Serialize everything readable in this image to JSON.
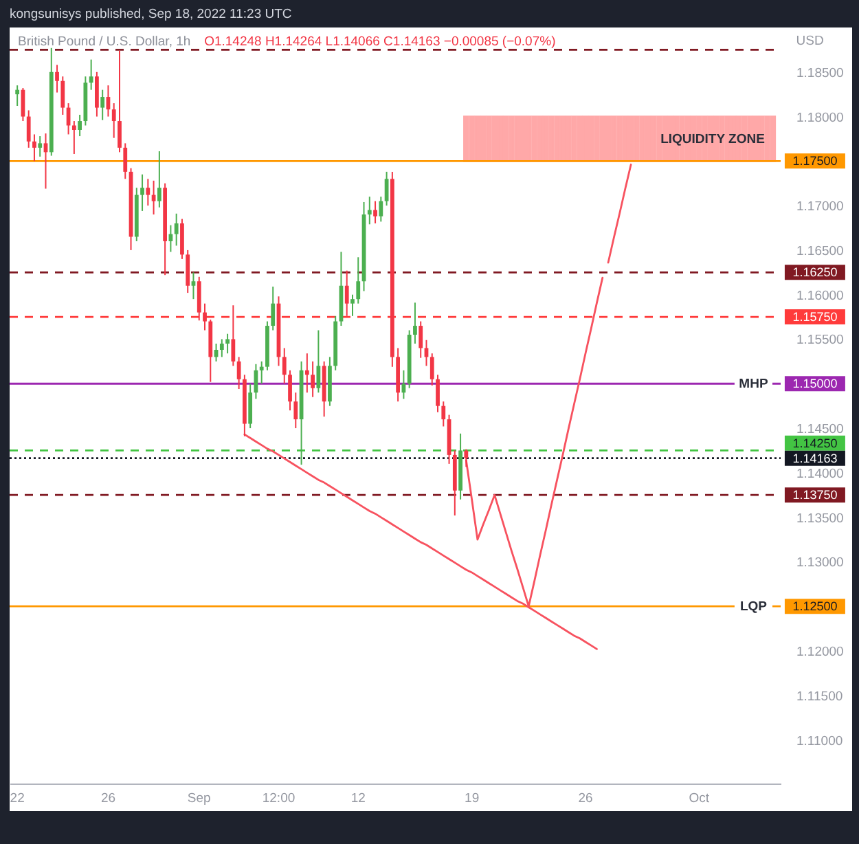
{
  "chart_data": {
    "type": "candlestick",
    "title": "British Pound / U.S. Dollar, 1h",
    "ylabel": "USD",
    "annotations": [
      "kongsunisys published, Sep 18, 2022 11:23 UTC",
      "O1.14248 H1.14264 L1.14066 C1.14163 −0.00085 (−0.07%)",
      "LIQUIDITY ZONE",
      {
        "text": "MHP",
        "y": 1.15
      },
      {
        "text": "LQP",
        "y": 1.125
      }
    ],
    "categories": [
      "22",
      null,
      null,
      null,
      null,
      null,
      null,
      null,
      null,
      null,
      null,
      null,
      null,
      null,
      null,
      null,
      "26",
      null,
      null,
      null,
      null,
      null,
      null,
      null,
      null,
      null,
      null,
      null,
      null,
      null,
      null,
      null,
      "Sep",
      null,
      null,
      null,
      null,
      null,
      null,
      null,
      null,
      null,
      null,
      null,
      null,
      null,
      "12:00",
      null,
      null,
      null,
      null,
      null,
      null,
      null,
      null,
      null,
      null,
      null,
      null,
      null,
      "12",
      null,
      null,
      null,
      null,
      null,
      null,
      null,
      null,
      null,
      null,
      null,
      null,
      null,
      null,
      null,
      null,
      null,
      null,
      null,
      "19",
      null,
      null,
      null,
      null,
      null,
      null,
      null,
      null,
      null,
      null,
      null,
      null,
      null,
      null,
      null,
      null,
      null,
      null,
      null,
      "26",
      null,
      null,
      null,
      null,
      null,
      null,
      null,
      null,
      null,
      null,
      null,
      null,
      null,
      null,
      null,
      null,
      null,
      null,
      null,
      "Oct",
      null,
      null,
      null,
      null,
      null,
      null,
      null,
      null,
      null,
      null,
      null,
      null,
      null
    ],
    "ylim": [
      1.1051,
      1.19
    ],
    "yticks": [
      {
        "value": 1.11,
        "label": "1.11000"
      },
      {
        "value": 1.115,
        "label": "1.11500"
      },
      {
        "value": 1.12,
        "label": "1.12000"
      },
      {
        "value": 1.13,
        "label": "1.13000"
      },
      {
        "value": 1.135,
        "label": "1.13500"
      },
      {
        "value": 1.14,
        "label": "1.14000"
      },
      {
        "value": 1.145,
        "label": "1.14500"
      },
      {
        "value": 1.155,
        "label": "1.15500"
      },
      {
        "value": 1.16,
        "label": "1.16000"
      },
      {
        "value": 1.165,
        "label": "1.16500"
      },
      {
        "value": 1.17,
        "label": "1.17000"
      },
      {
        "value": 1.18,
        "label": "1.18000"
      },
      {
        "value": 1.185,
        "label": "1.18500"
      }
    ],
    "ohlc": [
      [
        1.1825,
        1.1835,
        1.1812,
        1.183
      ],
      [
        1.183,
        1.1832,
        1.1795,
        1.18
      ],
      [
        1.18,
        1.1807,
        1.1765,
        1.1772
      ],
      [
        1.1772,
        1.178,
        1.175,
        1.1765
      ],
      [
        1.1765,
        1.1778,
        1.1755,
        1.177
      ],
      [
        1.177,
        1.1781,
        1.1719,
        1.176
      ],
      [
        1.176,
        1.1877,
        1.1756,
        1.185
      ],
      [
        1.185,
        1.1858,
        1.1827,
        1.184
      ],
      [
        1.184,
        1.1845,
        1.1802,
        1.181
      ],
      [
        1.181,
        1.1815,
        1.178,
        1.179
      ],
      [
        1.179,
        1.1795,
        1.1758,
        1.1785
      ],
      [
        1.1785,
        1.1802,
        1.1778,
        1.1795
      ],
      [
        1.1795,
        1.1845,
        1.179,
        1.1838
      ],
      [
        1.1838,
        1.1864,
        1.183,
        1.1845
      ],
      [
        1.1845,
        1.185,
        1.18,
        1.181
      ],
      [
        1.181,
        1.183,
        1.1796,
        1.1822
      ],
      [
        1.1822,
        1.1835,
        1.18,
        1.1808
      ],
      [
        1.1808,
        1.1815,
        1.1776,
        1.1795
      ],
      [
        1.1795,
        1.1874,
        1.176,
        1.1765
      ],
      [
        1.1765,
        1.177,
        1.173,
        1.1738
      ],
      [
        1.1738,
        1.1742,
        1.165,
        1.1665
      ],
      [
        1.1665,
        1.172,
        1.166,
        1.1712
      ],
      [
        1.1712,
        1.1735,
        1.1694,
        1.172
      ],
      [
        1.172,
        1.173,
        1.17,
        1.1712
      ],
      [
        1.1712,
        1.1728,
        1.169,
        1.1705
      ],
      [
        1.1705,
        1.1761,
        1.1698,
        1.172
      ],
      [
        1.172,
        1.1725,
        1.1622,
        1.166
      ],
      [
        1.166,
        1.1678,
        1.1648,
        1.1668
      ],
      [
        1.1668,
        1.1691,
        1.1655,
        1.168
      ],
      [
        1.168,
        1.1685,
        1.164,
        1.1645
      ],
      [
        1.1645,
        1.165,
        1.1602,
        1.161
      ],
      [
        1.161,
        1.1625,
        1.1595,
        1.1615
      ],
      [
        1.1615,
        1.162,
        1.1571,
        1.158
      ],
      [
        1.158,
        1.159,
        1.156,
        1.157
      ],
      [
        1.157,
        1.1572,
        1.1502,
        1.153
      ],
      [
        1.153,
        1.1545,
        1.1525,
        1.1538
      ],
      [
        1.1538,
        1.155,
        1.153,
        1.1545
      ],
      [
        1.1545,
        1.1556,
        1.1534,
        1.155
      ],
      [
        1.155,
        1.1588,
        1.152,
        1.1525
      ],
      [
        1.1525,
        1.153,
        1.1494,
        1.1505
      ],
      [
        1.1505,
        1.151,
        1.1441,
        1.1455
      ],
      [
        1.1455,
        1.15,
        1.145,
        1.149
      ],
      [
        1.149,
        1.1522,
        1.1483,
        1.1515
      ],
      [
        1.1515,
        1.1525,
        1.15,
        1.1519
      ],
      [
        1.1519,
        1.157,
        1.1515,
        1.1565
      ],
      [
        1.1565,
        1.1609,
        1.156,
        1.159
      ],
      [
        1.159,
        1.1598,
        1.152,
        1.153
      ],
      [
        1.153,
        1.154,
        1.15,
        1.151
      ],
      [
        1.151,
        1.1515,
        1.147,
        1.148
      ],
      [
        1.148,
        1.149,
        1.145,
        1.146
      ],
      [
        1.146,
        1.1525,
        1.1409,
        1.1515
      ],
      [
        1.1515,
        1.1534,
        1.149,
        1.151
      ],
      [
        1.151,
        1.1525,
        1.1485,
        1.1495
      ],
      [
        1.1495,
        1.156,
        1.149,
        1.152
      ],
      [
        1.152,
        1.1525,
        1.1463,
        1.148
      ],
      [
        1.148,
        1.153,
        1.1475,
        1.152
      ],
      [
        1.152,
        1.1576,
        1.1515,
        1.157
      ],
      [
        1.157,
        1.1648,
        1.1565,
        1.161
      ],
      [
        1.161,
        1.1627,
        1.1576,
        1.159
      ],
      [
        1.159,
        1.16,
        1.1576,
        1.1595
      ],
      [
        1.1595,
        1.1642,
        1.159,
        1.1615
      ],
      [
        1.1615,
        1.1704,
        1.1604,
        1.169
      ],
      [
        1.169,
        1.171,
        1.1679,
        1.1695
      ],
      [
        1.1695,
        1.1705,
        1.168,
        1.1688
      ],
      [
        1.1688,
        1.171,
        1.1682,
        1.1705
      ],
      [
        1.1705,
        1.1738,
        1.17,
        1.173
      ],
      [
        1.173,
        1.1738,
        1.1519,
        1.153
      ],
      [
        1.153,
        1.154,
        1.148,
        1.149
      ],
      [
        1.149,
        1.1515,
        1.1483,
        1.15
      ],
      [
        1.15,
        1.156,
        1.1495,
        1.1555
      ],
      [
        1.1555,
        1.1591,
        1.1545,
        1.1565
      ],
      [
        1.1565,
        1.157,
        1.1529,
        1.154
      ],
      [
        1.154,
        1.1549,
        1.152,
        1.153
      ],
      [
        1.153,
        1.1534,
        1.1498,
        1.1505
      ],
      [
        1.1505,
        1.151,
        1.1468,
        1.1475
      ],
      [
        1.1475,
        1.148,
        1.1452,
        1.146
      ],
      [
        1.146,
        1.1465,
        1.141,
        1.142
      ],
      [
        1.142,
        1.1425,
        1.1352,
        1.138
      ],
      [
        1.138,
        1.1444,
        1.137,
        1.1425
      ],
      [
        1.14248,
        1.14264,
        1.14066,
        1.14163
      ],
      null,
      null,
      null,
      null,
      null,
      null,
      null,
      null,
      null,
      null,
      null,
      null,
      null,
      null,
      null,
      null,
      null,
      null,
      null,
      null,
      null,
      null,
      null,
      null,
      null,
      null,
      null,
      null,
      null,
      null,
      null,
      null,
      null,
      null,
      null,
      null,
      null,
      null,
      null,
      null,
      null,
      null,
      null,
      null,
      null,
      null,
      null,
      null,
      null,
      null,
      null,
      null,
      null,
      null
    ],
    "colors": [
      "#4caf50",
      "#f23645",
      "#f23645",
      "#f23645",
      "#4caf50",
      "#f23645",
      "#4caf50",
      "#f23645",
      "#f23645",
      "#f23645",
      "#f23645",
      "#4caf50",
      "#4caf50",
      "#4caf50",
      "#f23645",
      "#4caf50",
      "#f23645",
      "#f23645",
      "#f23645",
      "#f23645",
      "#f23645",
      "#4caf50",
      "#4caf50",
      "#f23645",
      "#f23645",
      "#4caf50",
      "#f23645",
      "#4caf50",
      "#4caf50",
      "#f23645",
      "#f23645",
      "#4caf50",
      "#f23645",
      "#f23645",
      "#f23645",
      "#4caf50",
      "#4caf50",
      "#4caf50",
      "#f23645",
      "#f23645",
      "#f23645",
      "#4caf50",
      "#4caf50",
      "#4caf50",
      "#4caf50",
      "#4caf50",
      "#f23645",
      "#f23645",
      "#f23645",
      "#f23645",
      "#4caf50",
      "#f23645",
      "#f23645",
      "#4caf50",
      "#f23645",
      "#4caf50",
      "#4caf50",
      "#4caf50",
      "#f23645",
      "#4caf50",
      "#4caf50",
      "#4caf50",
      "#4caf50",
      "#f23645",
      "#4caf50",
      "#4caf50",
      "#f23645",
      "#f23645",
      "#4caf50",
      "#4caf50",
      "#4caf50",
      "#f23645",
      "#f23645",
      "#f23645",
      "#f23645",
      "#f23645",
      "#f23645",
      "#f23645",
      "#4caf50",
      "#f23645",
      null,
      null,
      null,
      null,
      null,
      null,
      null,
      null,
      null,
      null,
      null,
      null,
      null,
      null,
      null,
      null,
      null,
      null,
      null,
      null,
      null,
      null,
      null,
      null,
      null,
      null,
      null,
      null,
      null,
      null,
      null,
      null,
      null,
      null,
      null,
      null,
      null,
      null,
      null,
      null,
      null,
      null,
      null,
      null,
      null,
      null,
      null,
      null,
      null,
      null,
      null,
      null,
      null,
      null
    ],
    "series": [
      {
        "type": "bar",
        "color": "#ffa8a8",
        "values": [
          null,
          null,
          null,
          null,
          null,
          null,
          null,
          null,
          null,
          null,
          null,
          null,
          null,
          null,
          null,
          null,
          null,
          null,
          null,
          null,
          null,
          null,
          null,
          null,
          null,
          null,
          null,
          null,
          null,
          null,
          null,
          null,
          null,
          null,
          null,
          null,
          null,
          null,
          null,
          null,
          null,
          null,
          null,
          null,
          null,
          null,
          null,
          null,
          null,
          null,
          null,
          null,
          null,
          null,
          null,
          null,
          null,
          null,
          null,
          null,
          null,
          null,
          null,
          null,
          null,
          null,
          null,
          null,
          null,
          null,
          null,
          null,
          null,
          null,
          null,
          null,
          null,
          null,
          null,
          0.005,
          0.005,
          0.005,
          0.005,
          0.005,
          0.005,
          0.005,
          0.005,
          0.005,
          0.005,
          0.005,
          0.005,
          0.005,
          0.005,
          0.005,
          0.005,
          0.005,
          0.005,
          0.005,
          0.005,
          0.005,
          0.005,
          0.005,
          0.005,
          0.005,
          0.005,
          0.005,
          0.005,
          0.005,
          0.005,
          0.005,
          0.005,
          0.005,
          0.005,
          0.005,
          0.005,
          0.005,
          0.005,
          0.005,
          0.005,
          0.005,
          0.005,
          0.005,
          0.005,
          0.005,
          0.005,
          0.005,
          0.005,
          0.005,
          0.005,
          0.005,
          0.005,
          0.005,
          0.005,
          0.005
        ],
        "base": [
          null,
          null,
          null,
          null,
          null,
          null,
          null,
          null,
          null,
          null,
          null,
          null,
          null,
          null,
          null,
          null,
          null,
          null,
          null,
          null,
          null,
          null,
          null,
          null,
          null,
          null,
          null,
          null,
          null,
          null,
          null,
          null,
          null,
          null,
          null,
          null,
          null,
          null,
          null,
          null,
          null,
          null,
          null,
          null,
          null,
          null,
          null,
          null,
          null,
          null,
          null,
          null,
          null,
          null,
          null,
          null,
          null,
          null,
          null,
          null,
          null,
          null,
          null,
          null,
          null,
          null,
          null,
          null,
          null,
          null,
          null,
          null,
          null,
          null,
          null,
          null,
          null,
          null,
          null,
          1.175,
          1.175,
          1.175,
          1.175,
          1.175,
          1.175,
          1.175,
          1.175,
          1.175,
          1.175,
          1.175,
          1.175,
          1.175,
          1.175,
          1.175,
          1.175,
          1.175,
          1.175,
          1.175,
          1.175,
          1.175,
          1.175,
          1.175,
          1.175,
          1.175,
          1.175,
          1.175,
          1.175,
          1.175,
          1.175,
          1.175,
          1.175,
          1.175,
          1.175,
          1.175,
          1.175,
          1.175,
          1.175,
          1.175,
          1.175,
          1.175,
          1.175,
          1.175,
          1.175,
          1.175,
          1.175,
          1.175,
          1.175,
          1.175,
          1.175,
          1.175,
          1.175,
          1.175,
          1.175,
          1.175
        ]
      },
      {
        "type": "line",
        "color": "#f7525f",
        "values": [
          null,
          null,
          null,
          null,
          null,
          null,
          null,
          null,
          null,
          null,
          null,
          null,
          null,
          null,
          null,
          null,
          null,
          null,
          null,
          null,
          null,
          null,
          null,
          null,
          null,
          null,
          null,
          null,
          null,
          null,
          null,
          null,
          null,
          null,
          null,
          null,
          null,
          null,
          null,
          null,
          1.1443,
          1.1439,
          1.1435,
          1.1431,
          1.1427,
          1.1424,
          1.142,
          1.1416,
          1.1412,
          1.1408,
          1.1404,
          1.14,
          1.1396,
          1.1392,
          1.1389,
          1.1385,
          1.1381,
          1.1377,
          1.1373,
          1.1369,
          1.1365,
          1.1361,
          1.1357,
          1.1354,
          1.135,
          1.1346,
          1.1342,
          1.1338,
          1.1334,
          1.133,
          1.1326,
          1.1322,
          1.1319,
          1.1315,
          1.1311,
          1.1307,
          1.1303,
          1.1299,
          1.1295,
          1.1291,
          1.1288,
          1.1284,
          1.128,
          1.1276,
          1.1272,
          1.1268,
          1.1264,
          1.126,
          1.1256,
          1.1253,
          1.1249,
          1.1245,
          1.1241,
          1.1237,
          1.1233,
          1.1229,
          1.1225,
          1.1221,
          1.1217,
          1.1214,
          1.121,
          1.1206,
          1.1202,
          null,
          null,
          null,
          null,
          null,
          null,
          null,
          null,
          null,
          null,
          null,
          null,
          null,
          null,
          null,
          null,
          null,
          null,
          null,
          null,
          null,
          null,
          null,
          null,
          null,
          null,
          null,
          null,
          null,
          null,
          null
        ]
      },
      {
        "type": "line",
        "color": "#f7525f",
        "values": [
          null,
          null,
          null,
          null,
          null,
          null,
          null,
          null,
          null,
          null,
          null,
          null,
          null,
          null,
          null,
          null,
          null,
          null,
          null,
          null,
          null,
          null,
          null,
          null,
          null,
          null,
          null,
          null,
          null,
          null,
          null,
          null,
          null,
          null,
          null,
          null,
          null,
          null,
          null,
          null,
          null,
          null,
          null,
          null,
          null,
          null,
          null,
          null,
          null,
          null,
          null,
          null,
          null,
          null,
          null,
          null,
          null,
          null,
          null,
          null,
          null,
          null,
          null,
          null,
          null,
          null,
          null,
          null,
          null,
          null,
          null,
          null,
          null,
          null,
          null,
          null,
          null,
          null,
          null,
          1.1414,
          1.137,
          1.1325,
          1.1342,
          1.1358,
          1.1375,
          1.1354,
          1.1333,
          1.1312,
          1.1292,
          1.1271,
          1.125,
          1.1278,
          1.1307,
          1.1335,
          1.1364,
          1.1392,
          1.142,
          1.1449,
          1.1477,
          1.1505,
          1.1534,
          1.1562,
          1.1591,
          1.1619,
          null,
          null,
          null,
          null,
          null,
          null,
          null,
          null,
          null,
          null,
          null,
          null,
          null,
          null,
          null,
          null,
          null,
          null,
          null,
          null,
          null,
          null,
          null,
          null,
          null,
          null,
          null,
          null,
          null,
          null
        ]
      },
      {
        "type": "line",
        "color": "#f7525f",
        "values": [
          null,
          null,
          null,
          null,
          null,
          null,
          null,
          null,
          null,
          null,
          null,
          null,
          null,
          null,
          null,
          null,
          null,
          null,
          null,
          null,
          null,
          null,
          null,
          null,
          null,
          null,
          null,
          null,
          null,
          null,
          null,
          null,
          null,
          null,
          null,
          null,
          null,
          null,
          null,
          null,
          null,
          null,
          null,
          null,
          null,
          null,
          null,
          null,
          null,
          null,
          null,
          null,
          null,
          null,
          null,
          null,
          null,
          null,
          null,
          null,
          null,
          null,
          null,
          null,
          null,
          null,
          null,
          null,
          null,
          null,
          null,
          null,
          null,
          null,
          null,
          null,
          null,
          null,
          null,
          null,
          null,
          null,
          null,
          null,
          null,
          null,
          null,
          null,
          null,
          null,
          null,
          null,
          null,
          null,
          null,
          null,
          null,
          null,
          null,
          null,
          null,
          null,
          null,
          null,
          1.1636,
          1.1664,
          1.1691,
          1.1719,
          1.1746,
          null,
          null,
          null,
          null,
          null,
          null,
          null,
          null,
          null,
          null,
          null,
          null,
          null,
          null,
          null,
          null,
          null,
          null,
          null,
          null,
          null,
          null,
          null,
          null,
          null
        ]
      }
    ],
    "ref_lines": [
      {
        "axis": "y",
        "value": 1.1875,
        "color": "#801922",
        "line_style": "dashed"
      },
      {
        "axis": "y",
        "value": 1.175,
        "label": "1.17500",
        "color": "#ff9800"
      },
      {
        "axis": "y",
        "value": 1.1625,
        "label": "1.16250",
        "color": "#801922",
        "line_style": "dashed"
      },
      {
        "axis": "y",
        "value": 1.1575,
        "label": "1.15750",
        "color": "#ff3b3b",
        "line_style": "dashed"
      },
      {
        "axis": "y",
        "value": 1.15,
        "label": "1.15000",
        "color": "#9c27b0"
      },
      {
        "axis": "y",
        "value": 1.1425,
        "label": "1.14250",
        "color": "#43c443",
        "line_style": "dashed"
      },
      {
        "axis": "y",
        "value": 1.14163,
        "label": "1.14163",
        "color": "#131722",
        "line_style": "dotted"
      },
      {
        "axis": "y",
        "value": 1.1375,
        "label": "1.13750",
        "color": "#801922",
        "line_style": "dashed"
      },
      {
        "axis": "y",
        "value": 1.125,
        "label": "1.12500",
        "color": "#ff9800"
      }
    ]
  }
}
